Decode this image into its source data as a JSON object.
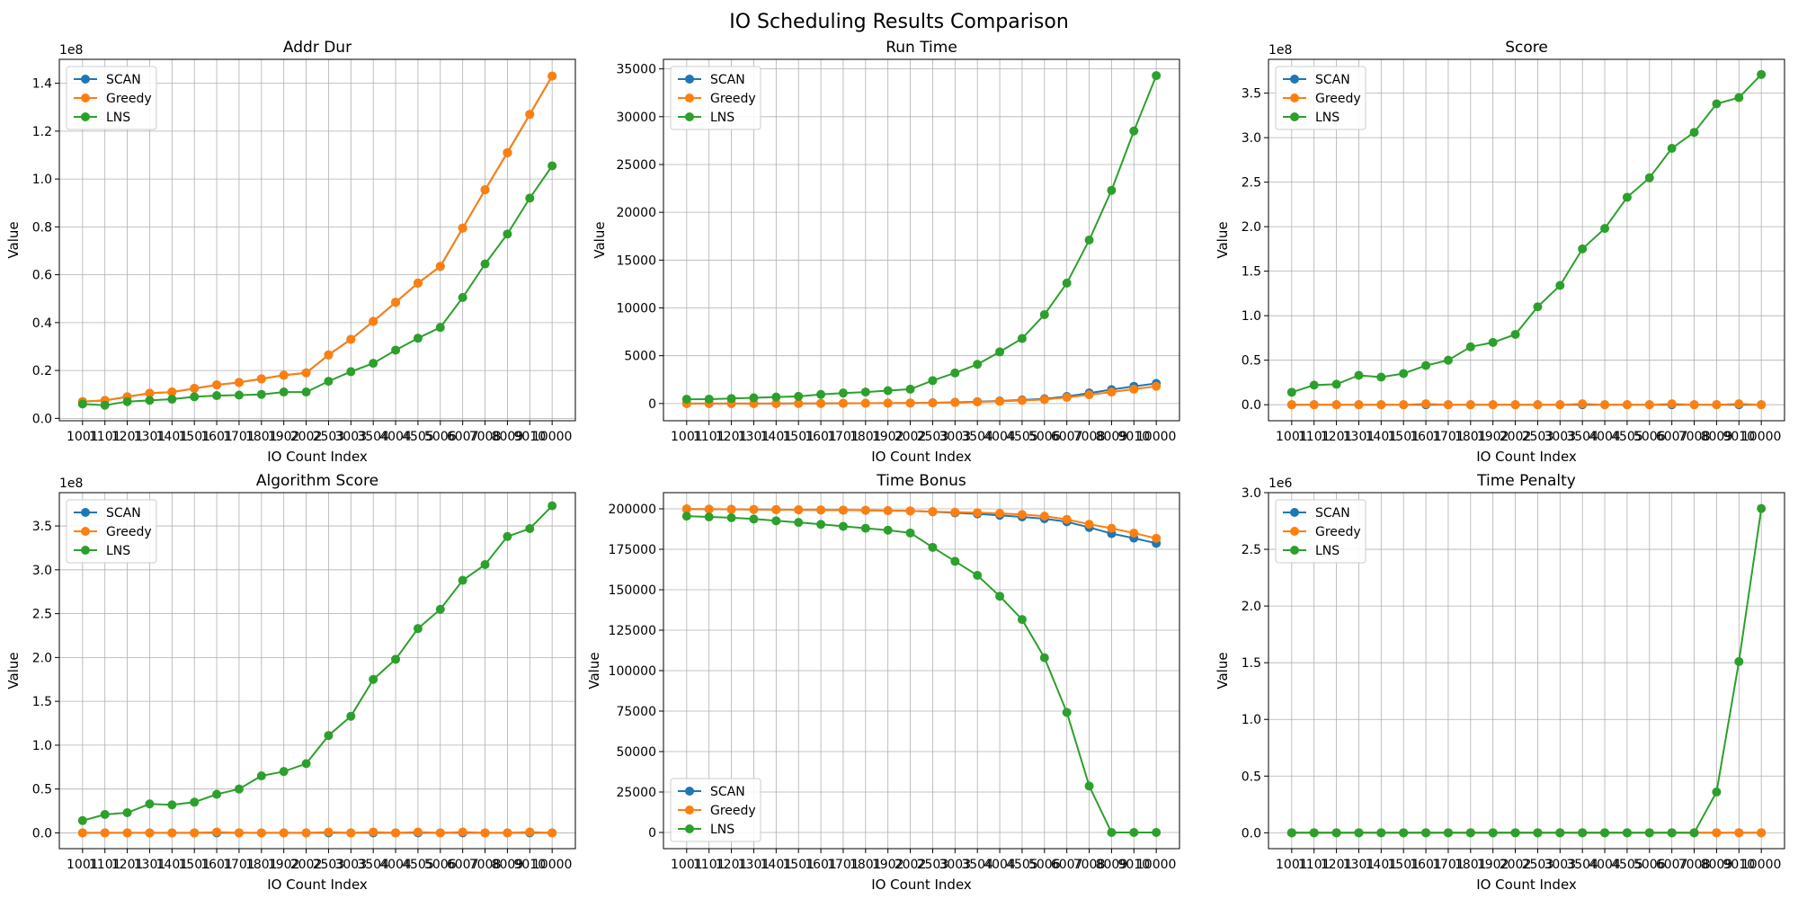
{
  "figure_title": "IO Scheduling Results Comparison",
  "colors": {
    "SCAN": "#1f77b4",
    "Greedy": "#ff7f0e",
    "LNS": "#2ca02c"
  },
  "chart_data": [
    {
      "type": "line",
      "title": "Addr Dur",
      "xlabel": "IO Count Index",
      "ylabel": "Value",
      "offset_label": "1e8",
      "scale": 100000000,
      "x": [
        "1001",
        "1101",
        "1201",
        "1301",
        "1401",
        "1501",
        "1601",
        "1701",
        "1801",
        "1902",
        "2002",
        "2503",
        "3003",
        "3504",
        "4004",
        "4505",
        "5006",
        "6007",
        "7008",
        "8009",
        "9010",
        "10000"
      ],
      "ylim": [
        -0.01,
        1.5
      ],
      "yticks": [
        0.0,
        0.2,
        0.4,
        0.6,
        0.8,
        1.0,
        1.2,
        1.4
      ],
      "ytick_labels": [
        "0.0",
        "0.2",
        "0.4",
        "0.6",
        "0.8",
        "1.0",
        "1.2",
        "1.4"
      ],
      "legend_position": "top-left",
      "series": [
        {
          "name": "SCAN",
          "values": [
            0.07,
            0.075,
            0.09,
            0.105,
            0.11,
            0.125,
            0.14,
            0.15,
            0.165,
            0.18,
            0.19,
            0.265,
            0.33,
            0.405,
            0.485,
            0.565,
            0.635,
            0.795,
            0.955,
            1.11,
            1.27,
            1.43
          ]
        },
        {
          "name": "Greedy",
          "values": [
            0.07,
            0.075,
            0.09,
            0.105,
            0.11,
            0.125,
            0.14,
            0.15,
            0.165,
            0.18,
            0.19,
            0.265,
            0.33,
            0.405,
            0.485,
            0.565,
            0.635,
            0.795,
            0.955,
            1.11,
            1.27,
            1.43
          ]
        },
        {
          "name": "LNS",
          "values": [
            0.06,
            0.055,
            0.07,
            0.075,
            0.08,
            0.09,
            0.095,
            0.097,
            0.1,
            0.11,
            0.11,
            0.155,
            0.195,
            0.23,
            0.285,
            0.335,
            0.38,
            0.505,
            0.645,
            0.77,
            0.92,
            1.055
          ]
        }
      ]
    },
    {
      "type": "line",
      "title": "Run Time",
      "xlabel": "IO Count Index",
      "ylabel": "Value",
      "offset_label": "",
      "scale": 1,
      "x": [
        "1001",
        "1101",
        "1201",
        "1301",
        "1401",
        "1501",
        "1601",
        "1701",
        "1801",
        "1902",
        "2002",
        "2503",
        "3003",
        "3504",
        "4004",
        "4505",
        "5006",
        "6007",
        "7008",
        "8009",
        "9010",
        "10000"
      ],
      "ylim": [
        -1800,
        36000
      ],
      "yticks": [
        0,
        5000,
        10000,
        15000,
        20000,
        25000,
        30000,
        35000
      ],
      "ytick_labels": [
        "0",
        "5000",
        "10000",
        "15000",
        "20000",
        "25000",
        "30000",
        "35000"
      ],
      "legend_position": "top-left",
      "series": [
        {
          "name": "SCAN",
          "values": [
            0,
            0,
            0,
            0,
            0,
            10,
            10,
            20,
            30,
            40,
            50,
            80,
            130,
            190,
            270,
            370,
            490,
            740,
            1100,
            1450,
            1800,
            2100
          ]
        },
        {
          "name": "Greedy",
          "values": [
            0,
            0,
            0,
            0,
            0,
            10,
            10,
            20,
            30,
            40,
            50,
            70,
            110,
            170,
            230,
            320,
            420,
            640,
            920,
            1200,
            1500,
            1800
          ]
        },
        {
          "name": "LNS",
          "values": [
            450,
            460,
            520,
            600,
            680,
            750,
            950,
            1100,
            1200,
            1350,
            1500,
            2400,
            3200,
            4100,
            5400,
            6800,
            9300,
            12600,
            17100,
            22300,
            28500,
            34300
          ]
        }
      ]
    },
    {
      "type": "line",
      "title": "Score",
      "xlabel": "IO Count Index",
      "ylabel": "Value",
      "offset_label": "1e8",
      "scale": 100000000,
      "x": [
        "1001",
        "1101",
        "1201",
        "1301",
        "1401",
        "1501",
        "1601",
        "1701",
        "1801",
        "1902",
        "2002",
        "2503",
        "3003",
        "3504",
        "4004",
        "4505",
        "5006",
        "6007",
        "7008",
        "8009",
        "9010",
        "10000"
      ],
      "ylim": [
        -0.18,
        3.88
      ],
      "yticks": [
        0.0,
        0.5,
        1.0,
        1.5,
        2.0,
        2.5,
        3.0,
        3.5
      ],
      "ytick_labels": [
        "0.0",
        "0.5",
        "1.0",
        "1.5",
        "2.0",
        "2.5",
        "3.0",
        "3.5"
      ],
      "legend_position": "top-left",
      "series": [
        {
          "name": "SCAN",
          "values": [
            0,
            0,
            0,
            0,
            0,
            0,
            0,
            0,
            0,
            0,
            0,
            0,
            0,
            0,
            0,
            0,
            0,
            0,
            0,
            0,
            0,
            0
          ]
        },
        {
          "name": "Greedy",
          "values": [
            0,
            0,
            0,
            0,
            0,
            0,
            0.01,
            0,
            0,
            0,
            0,
            0,
            0,
            0.01,
            0,
            0,
            0,
            0.01,
            0,
            0,
            0.01,
            0
          ]
        },
        {
          "name": "LNS",
          "values": [
            0.14,
            0.22,
            0.23,
            0.33,
            0.31,
            0.35,
            0.44,
            0.5,
            0.65,
            0.7,
            0.79,
            1.1,
            1.34,
            1.75,
            1.98,
            2.33,
            2.55,
            2.88,
            3.06,
            3.38,
            3.45,
            3.71
          ]
        }
      ]
    },
    {
      "type": "line",
      "title": "Algorithm Score",
      "xlabel": "IO Count Index",
      "ylabel": "Value",
      "offset_label": "1e8",
      "scale": 100000000,
      "x": [
        "1001",
        "1101",
        "1201",
        "1301",
        "1401",
        "1501",
        "1601",
        "1701",
        "1801",
        "1902",
        "2002",
        "2503",
        "3003",
        "3504",
        "4004",
        "4505",
        "5006",
        "6007",
        "7008",
        "8009",
        "9010",
        "10000"
      ],
      "ylim": [
        -0.18,
        3.88
      ],
      "yticks": [
        0.0,
        0.5,
        1.0,
        1.5,
        2.0,
        2.5,
        3.0,
        3.5
      ],
      "ytick_labels": [
        "0.0",
        "0.5",
        "1.0",
        "1.5",
        "2.0",
        "2.5",
        "3.0",
        "3.5"
      ],
      "legend_position": "top-left",
      "series": [
        {
          "name": "SCAN",
          "values": [
            0,
            0,
            0,
            0,
            0,
            0,
            0,
            0,
            0,
            0,
            0,
            0,
            0,
            0,
            0,
            0,
            0,
            0,
            0,
            0,
            0,
            0
          ]
        },
        {
          "name": "Greedy",
          "values": [
            0,
            0,
            0,
            0,
            0,
            0,
            0.01,
            0,
            0,
            0,
            0,
            0.01,
            0,
            0.01,
            0,
            0.01,
            0,
            0.01,
            0,
            0,
            0.01,
            0
          ]
        },
        {
          "name": "LNS",
          "values": [
            0.14,
            0.21,
            0.23,
            0.33,
            0.32,
            0.35,
            0.44,
            0.5,
            0.65,
            0.7,
            0.79,
            1.11,
            1.33,
            1.75,
            1.98,
            2.33,
            2.55,
            2.88,
            3.06,
            3.38,
            3.47,
            3.73
          ]
        }
      ]
    },
    {
      "type": "line",
      "title": "Time Bonus",
      "xlabel": "IO Count Index",
      "ylabel": "Value",
      "offset_label": "",
      "scale": 1,
      "x": [
        "1001",
        "1101",
        "1201",
        "1301",
        "1401",
        "1501",
        "1601",
        "1701",
        "1801",
        "1902",
        "2002",
        "2503",
        "3003",
        "3504",
        "4004",
        "4505",
        "5006",
        "6007",
        "7008",
        "8009",
        "9010",
        "10000"
      ],
      "ylim": [
        -10000,
        210000
      ],
      "yticks": [
        0,
        25000,
        50000,
        75000,
        100000,
        125000,
        150000,
        175000,
        200000
      ],
      "ytick_labels": [
        "0",
        "25000",
        "50000",
        "75000",
        "100000",
        "125000",
        "150000",
        "175000",
        "200000"
      ],
      "legend_position": "bottom-left",
      "series": [
        {
          "name": "SCAN",
          "values": [
            199900,
            199800,
            199700,
            199600,
            199500,
            199400,
            199300,
            199200,
            199100,
            198900,
            198700,
            198200,
            197500,
            196900,
            196000,
            195000,
            193900,
            192000,
            188500,
            184700,
            181900,
            178700
          ]
        },
        {
          "name": "Greedy",
          "values": [
            199900,
            199800,
            199700,
            199600,
            199500,
            199400,
            199300,
            199200,
            199100,
            198900,
            198700,
            198300,
            197900,
            197600,
            197200,
            196500,
            195500,
            193500,
            190500,
            188000,
            185000,
            181800
          ]
        },
        {
          "name": "LNS",
          "values": [
            195500,
            195000,
            194500,
            193700,
            192600,
            191600,
            190400,
            189200,
            188000,
            186800,
            185100,
            176200,
            167600,
            158900,
            146000,
            131600,
            108000,
            74200,
            28700,
            0,
            0,
            0
          ]
        }
      ]
    },
    {
      "type": "line",
      "title": "Time Penalty",
      "xlabel": "IO Count Index",
      "ylabel": "Value",
      "offset_label": "1e6",
      "scale": 1000000,
      "x": [
        "1001",
        "1101",
        "1201",
        "1301",
        "1401",
        "1501",
        "1601",
        "1701",
        "1801",
        "1902",
        "2002",
        "2503",
        "3003",
        "3504",
        "4004",
        "4505",
        "5006",
        "6007",
        "7008",
        "8009",
        "9010",
        "10000"
      ],
      "ylim": [
        -0.14,
        3.0
      ],
      "yticks": [
        0.0,
        0.5,
        1.0,
        1.5,
        2.0,
        2.5,
        3.0
      ],
      "ytick_labels": [
        "0.0",
        "0.5",
        "1.0",
        "1.5",
        "2.0",
        "2.5",
        "3.0"
      ],
      "legend_position": "top-left",
      "series": [
        {
          "name": "SCAN",
          "values": [
            0,
            0,
            0,
            0,
            0,
            0,
            0,
            0,
            0,
            0,
            0,
            0,
            0,
            0,
            0,
            0,
            0,
            0,
            0,
            0,
            0,
            0
          ]
        },
        {
          "name": "Greedy",
          "values": [
            0,
            0,
            0,
            0,
            0,
            0,
            0,
            0,
            0,
            0,
            0,
            0,
            0,
            0,
            0,
            0,
            0,
            0,
            0,
            0,
            0,
            0
          ]
        },
        {
          "name": "LNS",
          "values": [
            0,
            0,
            0,
            0,
            0,
            0,
            0,
            0,
            0,
            0,
            0,
            0,
            0,
            0,
            0,
            0,
            0,
            0,
            0,
            0.36,
            1.51,
            2.86
          ]
        }
      ]
    }
  ]
}
